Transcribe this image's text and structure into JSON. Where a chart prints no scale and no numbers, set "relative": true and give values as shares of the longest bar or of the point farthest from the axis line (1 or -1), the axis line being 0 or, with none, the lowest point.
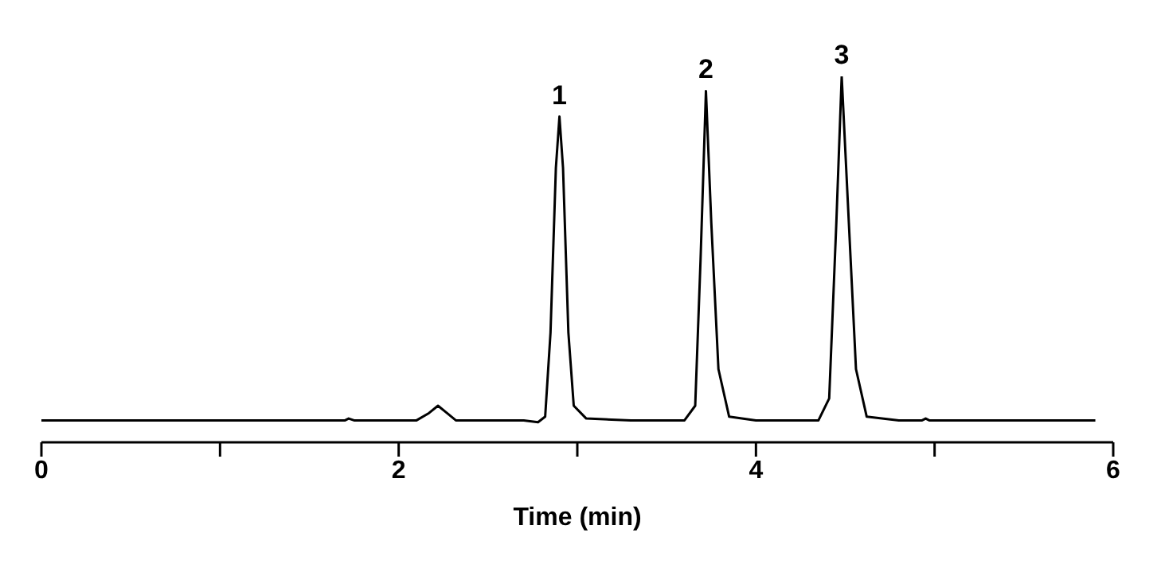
{
  "chart_data": {
    "type": "line",
    "relative": true,
    "xlabel": "Time (min)",
    "xlim": [
      0,
      6
    ],
    "xticks": [
      0,
      {
        "value": 1,
        "label": null
      },
      2,
      {
        "value": 3,
        "label": null
      },
      4,
      {
        "value": 5,
        "label": null
      },
      6
    ],
    "x": [
      0,
      1.0,
      1.7,
      1.72,
      1.75,
      2.1,
      2.17,
      2.22,
      2.27,
      2.32,
      2.7,
      2.78,
      2.82,
      2.85,
      2.88,
      2.9,
      2.92,
      2.95,
      2.98,
      3.05,
      3.3,
      3.6,
      3.66,
      3.69,
      3.72,
      3.75,
      3.79,
      3.85,
      4.0,
      4.35,
      4.41,
      4.45,
      4.48,
      4.52,
      4.56,
      4.62,
      4.8,
      4.93,
      4.95,
      4.97,
      5.5,
      5.9
    ],
    "series": [
      {
        "color": "#000000",
        "values": [
          0.06,
          0.06,
          0.06,
          0.065,
          0.06,
          0.06,
          0.08,
          0.1,
          0.08,
          0.06,
          0.06,
          0.055,
          0.07,
          0.3,
          0.75,
          0.89,
          0.75,
          0.3,
          0.1,
          0.065,
          0.06,
          0.06,
          0.1,
          0.5,
          0.96,
          0.6,
          0.2,
          0.07,
          0.06,
          0.06,
          0.12,
          0.6,
          1,
          0.6,
          0.2,
          0.07,
          0.06,
          0.06,
          0.065,
          0.06,
          0.06,
          0.06
        ]
      }
    ],
    "annotations": [
      {
        "text": "1",
        "x": 2.9,
        "y": 0.89
      },
      {
        "text": "2",
        "x": 3.72,
        "y": 0.96
      },
      {
        "text": "3",
        "x": 4.48,
        "y": 1
      }
    ],
    "grid": false,
    "legend": false,
    "marker": "none",
    "line_style": "solid"
  }
}
